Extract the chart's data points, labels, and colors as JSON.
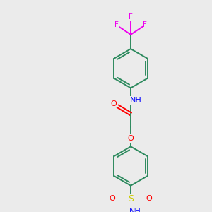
{
  "background_color": "#ebebeb",
  "bond_color": "#2d8a5e",
  "atom_colors": {
    "F": "#ee00ee",
    "O": "#ff0000",
    "N": "#0000ff",
    "S": "#cccc00",
    "C": "#2d8a5e",
    "H": "#2d8a5e"
  },
  "figsize": [
    3.0,
    3.0
  ],
  "dpi": 100
}
